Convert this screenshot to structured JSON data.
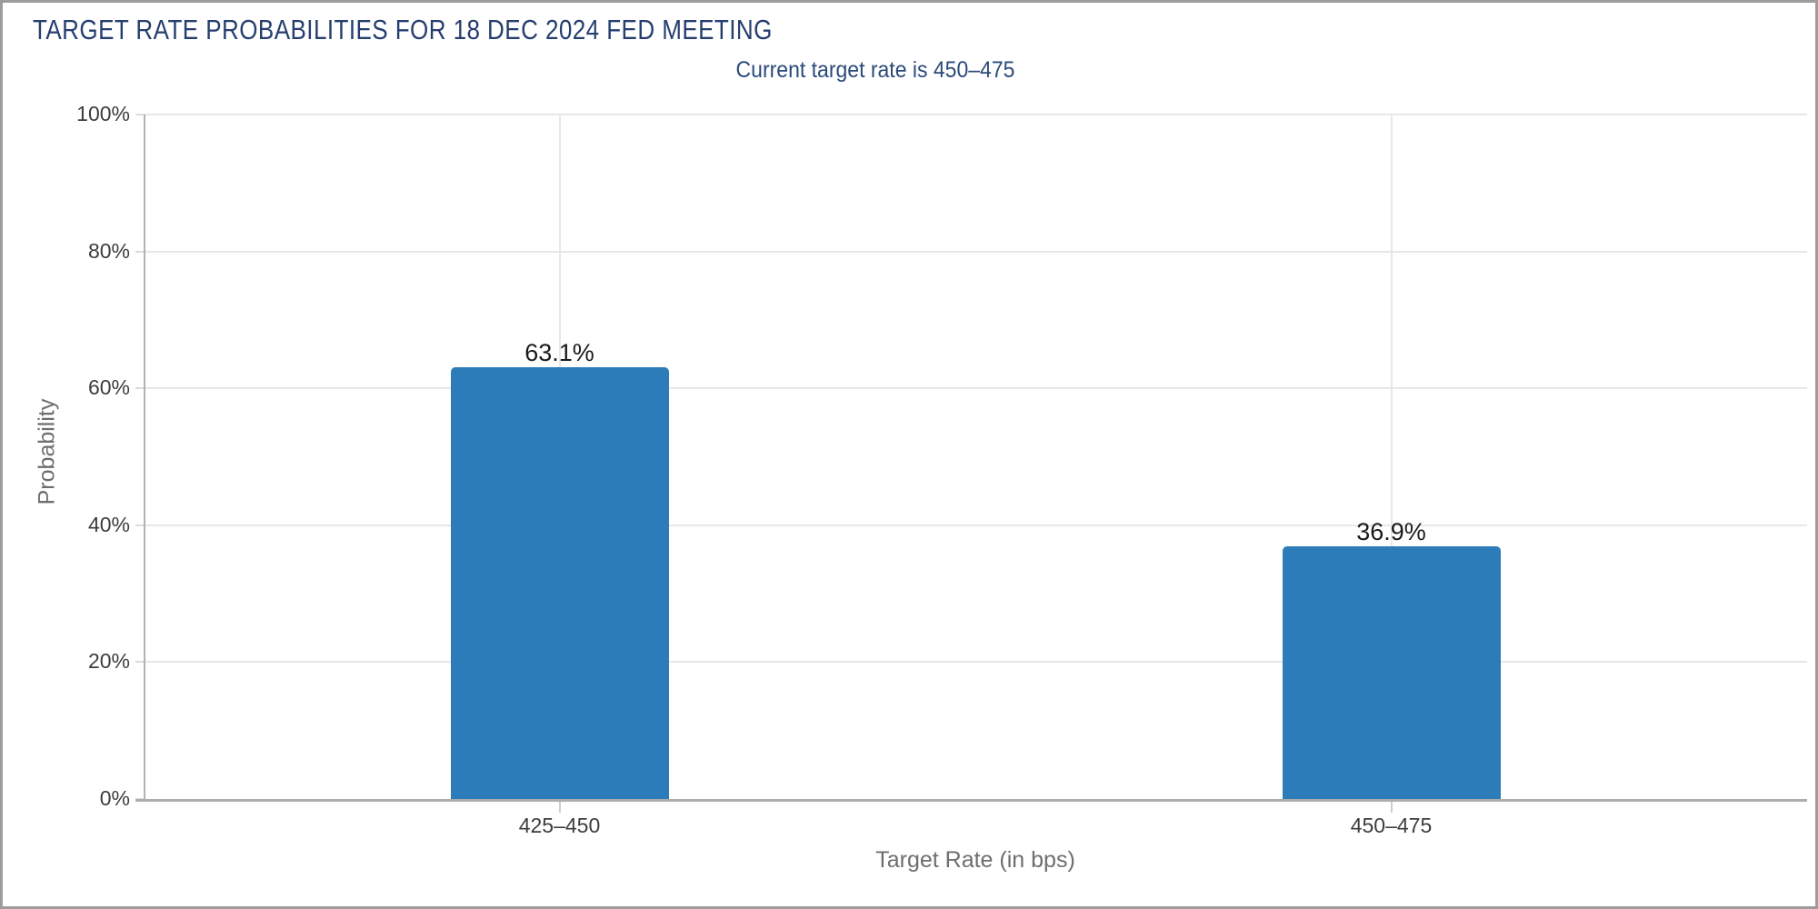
{
  "window": {
    "background": "#ffffff",
    "border_color": "#9c9c9c"
  },
  "header": {
    "title_color": "#263e6f",
    "subtitle_color": "#2b4a7a"
  },
  "chart_data": {
    "type": "bar",
    "title": "TARGET RATE PROBABILITIES FOR 18 DEC 2024 FED MEETING",
    "subtitle": "Current target rate is 450–475",
    "categories": [
      "425–450",
      "450–475"
    ],
    "values": [
      63.1,
      36.9
    ],
    "value_labels": [
      "63.1%",
      "36.9%"
    ],
    "series": [
      {
        "name": "Probability",
        "values": [
          63.1,
          36.9
        ]
      }
    ],
    "xlabel": "Target Rate (in bps)",
    "ylabel": "Probability",
    "ylim": [
      0,
      100
    ],
    "yticks": [
      0,
      20,
      40,
      60,
      80,
      100
    ],
    "ytick_labels": [
      "0%",
      "20%",
      "40%",
      "60%",
      "80%",
      "100%"
    ],
    "grid": true,
    "legend": "none",
    "bar_color": "#2b7cb9",
    "grid_color": "#e7e7e7",
    "axis_color": "#b2b2b2"
  }
}
